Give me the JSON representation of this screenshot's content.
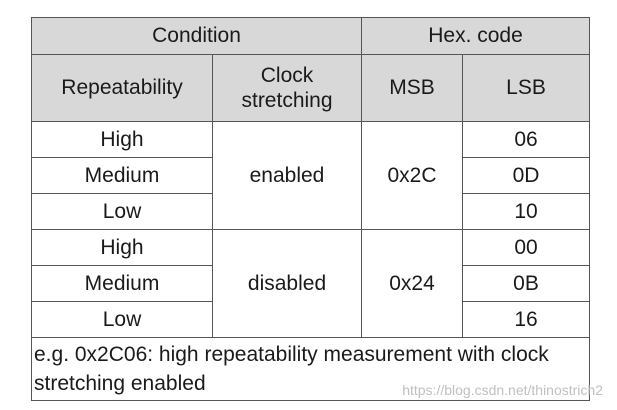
{
  "header": {
    "condition": "Condition",
    "hex_code": "Hex. code",
    "repeatability": "Repeatability",
    "clock_stretching_line1": "Clock",
    "clock_stretching_line2": "stretching",
    "msb": "MSB",
    "lsb": "LSB"
  },
  "groups": [
    {
      "clock": "enabled",
      "msb": "0x2C",
      "rows": [
        {
          "repeatability": "High",
          "lsb": "06"
        },
        {
          "repeatability": "Medium",
          "lsb": "0D"
        },
        {
          "repeatability": "Low",
          "lsb": "10"
        }
      ]
    },
    {
      "clock": "disabled",
      "msb": "0x24",
      "rows": [
        {
          "repeatability": "High",
          "lsb": "00"
        },
        {
          "repeatability": "Medium",
          "lsb": "0B"
        },
        {
          "repeatability": "Low",
          "lsb": "16"
        }
      ]
    }
  ],
  "note": "e.g. 0x2C06: high repeatability measurement with clock stretching enabled",
  "watermark": "https://blog.csdn.net/thinostrich2"
}
